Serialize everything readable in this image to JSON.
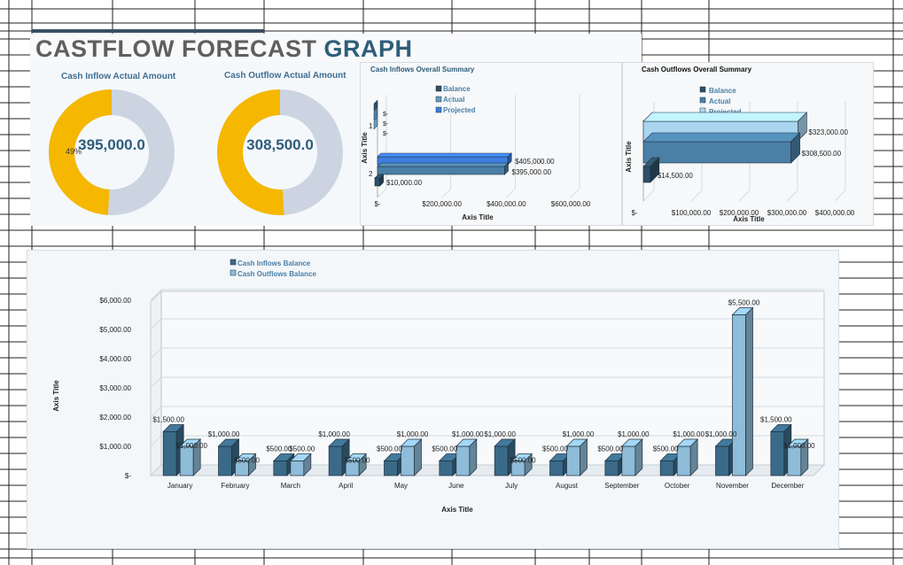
{
  "header": {
    "title_part1": "CASTFLOW FORECAST ",
    "title_part2": "GRAPH"
  },
  "colors": {
    "inflow": "#3a6a88",
    "outflow": "#8fbcd8",
    "donut_fill": "#f5b700",
    "donut_rest": "#cbd4e0",
    "projected": "#3d7ee0"
  },
  "donut_inflow": {
    "title": "Cash Inflow Actual Amount",
    "center": "395,000.0",
    "pct_label": "49%",
    "percent": 49
  },
  "donut_outflow": {
    "title": "Cash Outflow Actual Amount",
    "center": "308,500.0",
    "percent": 51
  },
  "inflows_summary": {
    "title": "Cash Inflows Overall Summary",
    "legend": [
      "Balance",
      "Actual",
      "Projected"
    ],
    "y_axis_title": "Axis Title",
    "x_axis_title": "Axis Title",
    "x_ticks": [
      "$-",
      "$200,000.00",
      "$400,000.00",
      "$600,000.00"
    ],
    "y_ticks": [
      "1",
      "2"
    ],
    "small_labels": [
      "$-",
      "$-",
      "$-"
    ],
    "value_labels": [
      "$405,000.00",
      "$395,000.00",
      "$10,000.00"
    ]
  },
  "outflows_summary": {
    "title": "Cash Outflows Overall Summary",
    "legend": [
      "Balance",
      "Actual",
      "Projected"
    ],
    "y_axis_title": "Axis Title",
    "x_axis_title": "Axis Title",
    "x_ticks": [
      "$-",
      "$100,000.00",
      "$200,000.00",
      "$300,000.00",
      "$400,000.00"
    ],
    "value_labels": [
      "$323,000.00",
      "$308,500.00",
      "$14,500.00"
    ]
  },
  "chart_data": [
    {
      "type": "bar",
      "categories": [
        "January",
        "February",
        "March",
        "April",
        "May",
        "June",
        "July",
        "August",
        "September",
        "October",
        "November",
        "December"
      ],
      "series": [
        {
          "name": "Cash Inflows Balance",
          "values": [
            1500,
            1000,
            500,
            1000,
            500,
            500,
            1000,
            500,
            500,
            500,
            1000,
            1500
          ]
        },
        {
          "name": "Cash Outflows Balance",
          "values": [
            1000,
            500,
            500,
            500,
            1000,
            1000,
            500,
            1000,
            1000,
            1000,
            5500,
            1000
          ]
        }
      ],
      "data_labels_inflow": [
        "$1,500.00",
        "$1,000.00",
        "$500.00",
        "$1,000.00",
        "$500.00",
        "$500.00",
        "$1,000.00",
        "$500.00",
        "$500.00",
        "$500.00",
        "$1,000.00",
        "$1,500.00"
      ],
      "data_labels_outflow": [
        "$1,000.00",
        "$500.00",
        "$500.00",
        "$500.00",
        "$1,000.00",
        "$1,000.00",
        "$500.00",
        "$1,000.00",
        "$1,000.00",
        "$1,000.00",
        "$5,500.00",
        "$1,000.00"
      ],
      "y_ticks": [
        "$-",
        "$1,000.00",
        "$2,000.00",
        "$3,000.00",
        "$4,000.00",
        "$5,000.00",
        "$6,000.00"
      ],
      "ylim": [
        0,
        6000
      ],
      "xlabel": "Axis Title",
      "ylabel": "Axis Title",
      "legend_position": "top-left",
      "grid": true
    },
    {
      "type": "bar",
      "categories": [
        "1",
        "2"
      ],
      "series": [
        {
          "name": "Balance",
          "values": [
            0,
            10000
          ]
        },
        {
          "name": "Actual",
          "values": [
            0,
            395000
          ]
        },
        {
          "name": "Projected",
          "values": [
            0,
            405000
          ]
        }
      ],
      "xlim": [
        0,
        600000
      ]
    },
    {
      "type": "bar",
      "series": [
        {
          "name": "Balance",
          "values": [
            14500
          ]
        },
        {
          "name": "Actual",
          "values": [
            308500
          ]
        },
        {
          "name": "Projected",
          "values": [
            323000
          ]
        }
      ],
      "xlim": [
        0,
        400000
      ]
    }
  ]
}
